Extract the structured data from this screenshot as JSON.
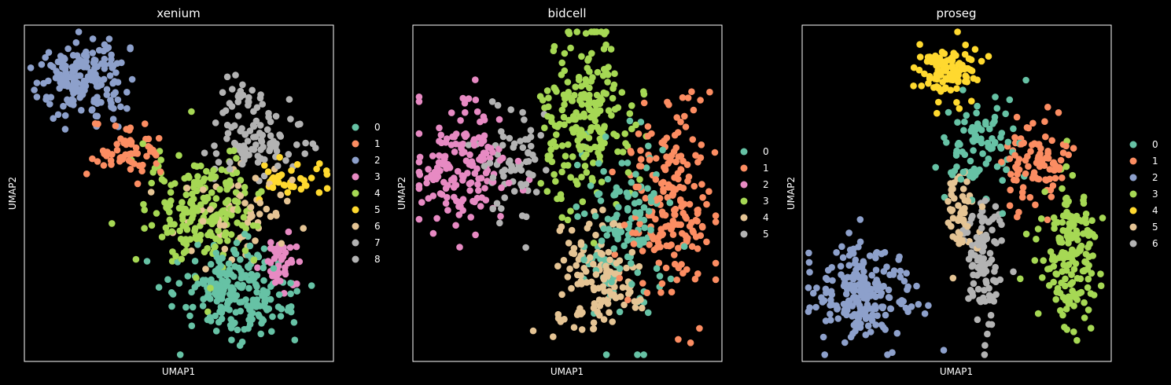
{
  "figure": {
    "background": "#000000",
    "axis_color": "#ffffff"
  },
  "chart_data": [
    {
      "type": "scatter",
      "title": "xenium",
      "xlabel": "UMAP1",
      "ylabel": "UMAP2",
      "xlim": [
        0,
        100
      ],
      "ylim": [
        0,
        100
      ],
      "grid": false,
      "ticks": false,
      "legend": "right",
      "legend_entries": [
        "0",
        "1",
        "2",
        "3",
        "4",
        "5",
        "6",
        "7",
        "8"
      ],
      "clusters": [
        {
          "name": "0",
          "color": "#66c2a5",
          "cx": 68,
          "cy": 20,
          "sx": 9,
          "sy": 7,
          "n": 210
        },
        {
          "name": "1",
          "color": "#fc8d62",
          "cx": 34,
          "cy": 62,
          "sx": 6,
          "sy": 4,
          "n": 60
        },
        {
          "name": "2",
          "color": "#8da0cb",
          "cx": 19,
          "cy": 83,
          "sx": 7,
          "sy": 6,
          "n": 180
        },
        {
          "name": "3",
          "color": "#e78ac3",
          "cx": 83,
          "cy": 30,
          "sx": 3,
          "sy": 4,
          "n": 45
        },
        {
          "name": "4",
          "color": "#a6d854",
          "cx": 57,
          "cy": 45,
          "sx": 9,
          "sy": 9,
          "n": 200
        },
        {
          "name": "5",
          "color": "#ffd92f",
          "cx": 88,
          "cy": 55,
          "sx": 5,
          "sy": 3,
          "n": 35
        },
        {
          "name": "6",
          "color": "#e5c494",
          "cx": 68,
          "cy": 43,
          "sx": 9,
          "sy": 7,
          "n": 60
        },
        {
          "name": "7",
          "color": "#b3b3b3",
          "cx": 76,
          "cy": 65,
          "sx": 7,
          "sy": 5,
          "n": 90
        },
        {
          "name": "8",
          "color": "#b3b3b3",
          "cx": 70,
          "cy": 78,
          "sx": 4,
          "sy": 4,
          "n": 25
        }
      ]
    },
    {
      "type": "scatter",
      "title": "bidcell",
      "xlabel": "UMAP1",
      "ylabel": "UMAP2",
      "xlim": [
        0,
        100
      ],
      "ylim": [
        0,
        100
      ],
      "grid": false,
      "ticks": false,
      "legend": "right",
      "legend_entries": [
        "0",
        "1",
        "2",
        "3",
        "4",
        "5"
      ],
      "clusters": [
        {
          "name": "0",
          "color": "#66c2a5",
          "cx": 67,
          "cy": 40,
          "sx": 7,
          "sy": 14,
          "n": 140
        },
        {
          "name": "1",
          "color": "#fc8d62",
          "cx": 84,
          "cy": 48,
          "sx": 7,
          "sy": 14,
          "n": 200
        },
        {
          "name": "2",
          "color": "#e78ac3",
          "cx": 15,
          "cy": 58,
          "sx": 7,
          "sy": 10,
          "n": 160
        },
        {
          "name": "3",
          "color": "#a6d854",
          "cx": 56,
          "cy": 72,
          "sx": 8,
          "sy": 13,
          "n": 220
        },
        {
          "name": "4",
          "color": "#e5c494",
          "cx": 59,
          "cy": 25,
          "sx": 7,
          "sy": 8,
          "n": 130
        },
        {
          "name": "5",
          "color": "#b3b3b3",
          "cx": 32,
          "cy": 58,
          "sx": 6,
          "sy": 9,
          "n": 70
        }
      ]
    },
    {
      "type": "scatter",
      "title": "proseg",
      "xlabel": "UMAP1",
      "ylabel": "UMAP2",
      "xlim": [
        0,
        100
      ],
      "ylim": [
        0,
        100
      ],
      "grid": false,
      "ticks": false,
      "legend": "right",
      "legend_entries": [
        "0",
        "1",
        "2",
        "3",
        "4",
        "5",
        "6"
      ],
      "clusters": [
        {
          "name": "0",
          "color": "#66c2a5",
          "cx": 58,
          "cy": 65,
          "sx": 6,
          "sy": 8,
          "n": 90
        },
        {
          "name": "1",
          "color": "#fc8d62",
          "cx": 76,
          "cy": 60,
          "sx": 5,
          "sy": 7,
          "n": 100
        },
        {
          "name": "2",
          "color": "#8da0cb",
          "cx": 20,
          "cy": 20,
          "sx": 8,
          "sy": 7,
          "n": 220
        },
        {
          "name": "3",
          "color": "#a6d854",
          "cx": 87,
          "cy": 32,
          "sx": 5,
          "sy": 10,
          "n": 170
        },
        {
          "name": "4",
          "color": "#ffd92f",
          "cx": 47,
          "cy": 86,
          "sx": 5,
          "sy": 4,
          "n": 110
        },
        {
          "name": "5",
          "color": "#e5c494",
          "cx": 51,
          "cy": 45,
          "sx": 3,
          "sy": 6,
          "n": 50
        },
        {
          "name": "6",
          "color": "#b3b3b3",
          "cx": 59,
          "cy": 30,
          "sx": 3,
          "sy": 10,
          "n": 110
        }
      ]
    }
  ]
}
